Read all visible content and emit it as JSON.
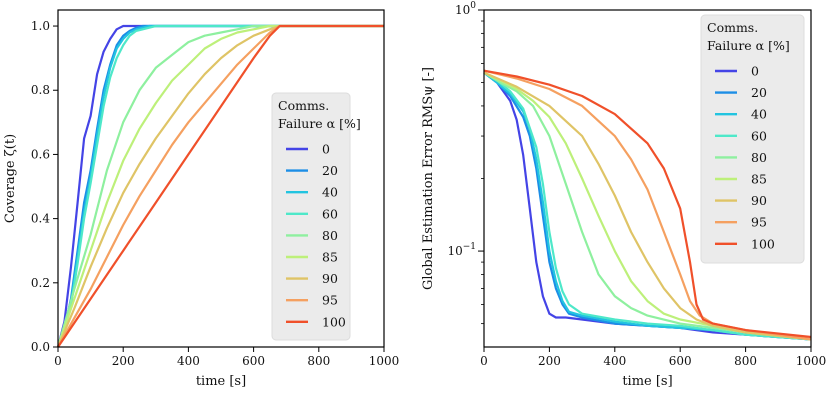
{
  "chart_data": [
    {
      "type": "line",
      "xlabel": "time [s]",
      "ylabel": "Coverage ζ(t)",
      "xlim": [
        0,
        1000
      ],
      "ylim": [
        0,
        1.05
      ],
      "yscale": "linear",
      "xticks": [
        "0",
        "200",
        "400",
        "600",
        "800",
        "1000"
      ],
      "yticks": [
        "0.0",
        "0.2",
        "0.4",
        "0.6",
        "0.8",
        "1.0"
      ],
      "grid": false,
      "legend": {
        "title_line1": "Comms.",
        "title_line2": "Failure α [%]",
        "placement": "center-right"
      },
      "series": [
        {
          "name": "0",
          "color": "#4444e6",
          "x": [
            0,
            20,
            40,
            60,
            80,
            100,
            120,
            140,
            160,
            180,
            200,
            220,
            1000
          ],
          "y": [
            0.0,
            0.08,
            0.25,
            0.45,
            0.65,
            0.72,
            0.85,
            0.92,
            0.96,
            0.99,
            1.0,
            1.0,
            1.0
          ]
        },
        {
          "name": "20",
          "color": "#1c8ee6",
          "x": [
            0,
            20,
            40,
            60,
            80,
            100,
            120,
            140,
            160,
            180,
            200,
            220,
            240,
            260,
            280,
            1000
          ],
          "y": [
            0.0,
            0.06,
            0.15,
            0.3,
            0.45,
            0.55,
            0.68,
            0.8,
            0.88,
            0.94,
            0.97,
            0.985,
            0.995,
            1.0,
            1.0,
            1.0
          ]
        },
        {
          "name": "40",
          "color": "#22c4e0",
          "x": [
            0,
            20,
            40,
            60,
            80,
            100,
            120,
            140,
            160,
            180,
            200,
            220,
            240,
            260,
            280,
            300,
            1000
          ],
          "y": [
            0.0,
            0.05,
            0.14,
            0.28,
            0.42,
            0.53,
            0.66,
            0.78,
            0.87,
            0.93,
            0.96,
            0.98,
            0.99,
            0.995,
            1.0,
            1.0,
            1.0
          ]
        },
        {
          "name": "60",
          "color": "#4ee8c9",
          "x": [
            0,
            20,
            40,
            60,
            80,
            100,
            120,
            140,
            160,
            180,
            200,
            220,
            240,
            260,
            280,
            300,
            320,
            1000
          ],
          "y": [
            0.0,
            0.05,
            0.13,
            0.26,
            0.4,
            0.51,
            0.63,
            0.75,
            0.84,
            0.9,
            0.94,
            0.97,
            0.985,
            0.99,
            0.995,
            1.0,
            1.0,
            1.0
          ]
        },
        {
          "name": "80",
          "color": "#8ef09f",
          "x": [
            0,
            50,
            100,
            150,
            200,
            250,
            300,
            350,
            400,
            450,
            500,
            550,
            600,
            1000
          ],
          "y": [
            0.0,
            0.18,
            0.35,
            0.55,
            0.7,
            0.8,
            0.87,
            0.91,
            0.95,
            0.97,
            0.98,
            0.99,
            1.0,
            1.0
          ]
        },
        {
          "name": "85",
          "color": "#bdf07a",
          "x": [
            0,
            50,
            100,
            150,
            200,
            250,
            300,
            350,
            400,
            450,
            500,
            550,
            600,
            650,
            1000
          ],
          "y": [
            0.0,
            0.15,
            0.3,
            0.45,
            0.58,
            0.68,
            0.76,
            0.83,
            0.88,
            0.93,
            0.96,
            0.98,
            0.99,
            1.0,
            1.0
          ]
        },
        {
          "name": "90",
          "color": "#dfc466",
          "x": [
            0,
            50,
            100,
            150,
            200,
            250,
            300,
            350,
            400,
            450,
            500,
            550,
            600,
            650,
            680,
            1000
          ],
          "y": [
            0.0,
            0.12,
            0.25,
            0.37,
            0.48,
            0.57,
            0.65,
            0.72,
            0.79,
            0.85,
            0.9,
            0.94,
            0.97,
            0.99,
            1.0,
            1.0
          ]
        },
        {
          "name": "95",
          "color": "#f5a060",
          "x": [
            0,
            50,
            100,
            150,
            200,
            250,
            300,
            350,
            400,
            450,
            500,
            550,
            600,
            650,
            680,
            1000
          ],
          "y": [
            0.0,
            0.09,
            0.18,
            0.28,
            0.38,
            0.47,
            0.55,
            0.63,
            0.7,
            0.76,
            0.82,
            0.88,
            0.93,
            0.98,
            1.0,
            1.0
          ]
        },
        {
          "name": "100",
          "color": "#f0502a",
          "x": [
            0,
            100,
            200,
            300,
            400,
            500,
            600,
            650,
            680,
            1000
          ],
          "y": [
            0.0,
            0.15,
            0.3,
            0.45,
            0.6,
            0.75,
            0.9,
            0.97,
            1.0,
            1.0
          ]
        }
      ]
    },
    {
      "type": "line",
      "xlabel": "time [s]",
      "ylabel": "Global Estimation Error RMSψ [-]",
      "xlim": [
        0,
        1000
      ],
      "ylim": [
        0.04,
        1.0
      ],
      "yscale": "log",
      "xticks": [
        "0",
        "200",
        "400",
        "600",
        "800",
        "1000"
      ],
      "yticks": [
        {
          "value": 1.0,
          "label": "10^0"
        },
        {
          "value": 0.1,
          "label": "10^−1"
        }
      ],
      "grid": false,
      "legend": {
        "title_line1": "Comms.",
        "title_line2": "Failure α [%]",
        "placement": "top-right"
      },
      "series": [
        {
          "name": "0",
          "color": "#4444e6",
          "x": [
            0,
            40,
            80,
            100,
            120,
            140,
            160,
            180,
            200,
            220,
            250,
            300,
            400,
            500,
            600,
            700,
            800,
            1000
          ],
          "y": [
            0.55,
            0.5,
            0.42,
            0.35,
            0.25,
            0.15,
            0.09,
            0.065,
            0.055,
            0.053,
            0.053,
            0.052,
            0.05,
            0.049,
            0.048,
            0.046,
            0.045,
            0.043
          ]
        },
        {
          "name": "20",
          "color": "#1c8ee6",
          "x": [
            0,
            40,
            80,
            120,
            140,
            160,
            180,
            200,
            220,
            240,
            260,
            300,
            400,
            500,
            600,
            700,
            800,
            1000
          ],
          "y": [
            0.55,
            0.5,
            0.44,
            0.36,
            0.3,
            0.22,
            0.14,
            0.09,
            0.07,
            0.06,
            0.055,
            0.053,
            0.05,
            0.049,
            0.048,
            0.047,
            0.045,
            0.043
          ]
        },
        {
          "name": "40",
          "color": "#22c4e0",
          "x": [
            0,
            40,
            80,
            120,
            140,
            160,
            180,
            200,
            220,
            240,
            260,
            300,
            400,
            500,
            600,
            700,
            800,
            1000
          ],
          "y": [
            0.55,
            0.5,
            0.45,
            0.38,
            0.32,
            0.24,
            0.16,
            0.1,
            0.075,
            0.062,
            0.056,
            0.054,
            0.051,
            0.049,
            0.048,
            0.047,
            0.045,
            0.043
          ]
        },
        {
          "name": "60",
          "color": "#4ee8c9",
          "x": [
            0,
            40,
            80,
            120,
            160,
            180,
            200,
            220,
            240,
            260,
            300,
            400,
            500,
            600,
            700,
            800,
            1000
          ],
          "y": [
            0.55,
            0.51,
            0.46,
            0.39,
            0.27,
            0.19,
            0.12,
            0.085,
            0.068,
            0.06,
            0.055,
            0.052,
            0.05,
            0.049,
            0.047,
            0.045,
            0.043
          ]
        },
        {
          "name": "80",
          "color": "#8ef09f",
          "x": [
            0,
            50,
            100,
            150,
            200,
            250,
            300,
            350,
            400,
            450,
            500,
            600,
            700,
            800,
            1000
          ],
          "y": [
            0.55,
            0.5,
            0.46,
            0.4,
            0.3,
            0.19,
            0.12,
            0.08,
            0.065,
            0.058,
            0.054,
            0.05,
            0.048,
            0.046,
            0.043
          ]
        },
        {
          "name": "85",
          "color": "#bdf07a",
          "x": [
            0,
            50,
            100,
            150,
            200,
            250,
            300,
            350,
            400,
            450,
            500,
            550,
            600,
            700,
            800,
            1000
          ],
          "y": [
            0.55,
            0.51,
            0.47,
            0.42,
            0.36,
            0.28,
            0.2,
            0.14,
            0.1,
            0.075,
            0.062,
            0.055,
            0.052,
            0.049,
            0.046,
            0.043
          ]
        },
        {
          "name": "90",
          "color": "#dfc466",
          "x": [
            0,
            100,
            200,
            300,
            350,
            400,
            450,
            500,
            550,
            600,
            650,
            700,
            800,
            1000
          ],
          "y": [
            0.55,
            0.48,
            0.4,
            0.3,
            0.23,
            0.17,
            0.12,
            0.09,
            0.07,
            0.058,
            0.052,
            0.049,
            0.046,
            0.043
          ]
        },
        {
          "name": "95",
          "color": "#f5a060",
          "x": [
            0,
            100,
            200,
            300,
            400,
            450,
            500,
            550,
            600,
            630,
            660,
            700,
            800,
            1000
          ],
          "y": [
            0.56,
            0.52,
            0.47,
            0.4,
            0.3,
            0.24,
            0.18,
            0.12,
            0.08,
            0.062,
            0.054,
            0.05,
            0.047,
            0.043
          ]
        },
        {
          "name": "100",
          "color": "#f0502a",
          "x": [
            0,
            100,
            200,
            300,
            400,
            500,
            550,
            600,
            630,
            650,
            670,
            700,
            800,
            1000
          ],
          "y": [
            0.56,
            0.53,
            0.49,
            0.44,
            0.37,
            0.28,
            0.22,
            0.15,
            0.09,
            0.06,
            0.052,
            0.05,
            0.047,
            0.044
          ]
        }
      ]
    }
  ]
}
